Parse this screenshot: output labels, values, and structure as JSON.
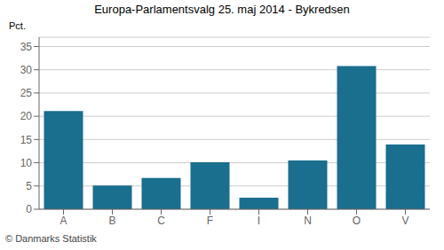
{
  "chart_data": {
    "type": "bar",
    "title": "Europa-Parlamentsvalg 25. maj 2014 - Bykredsen",
    "ylabel": "Pct.",
    "annotations": [
      "© Danmarks Statistik"
    ],
    "categories": [
      "A",
      "B",
      "C",
      "F",
      "I",
      "N",
      "O",
      "V"
    ],
    "values": [
      21.1,
      5.1,
      6.7,
      10.1,
      2.5,
      10.5,
      30.8,
      13.9
    ],
    "color": "#1a6e8e",
    "ylim": [
      0,
      37
    ],
    "yticks": [
      0,
      5,
      10,
      15,
      20,
      25,
      30,
      35
    ],
    "grid": true
  }
}
